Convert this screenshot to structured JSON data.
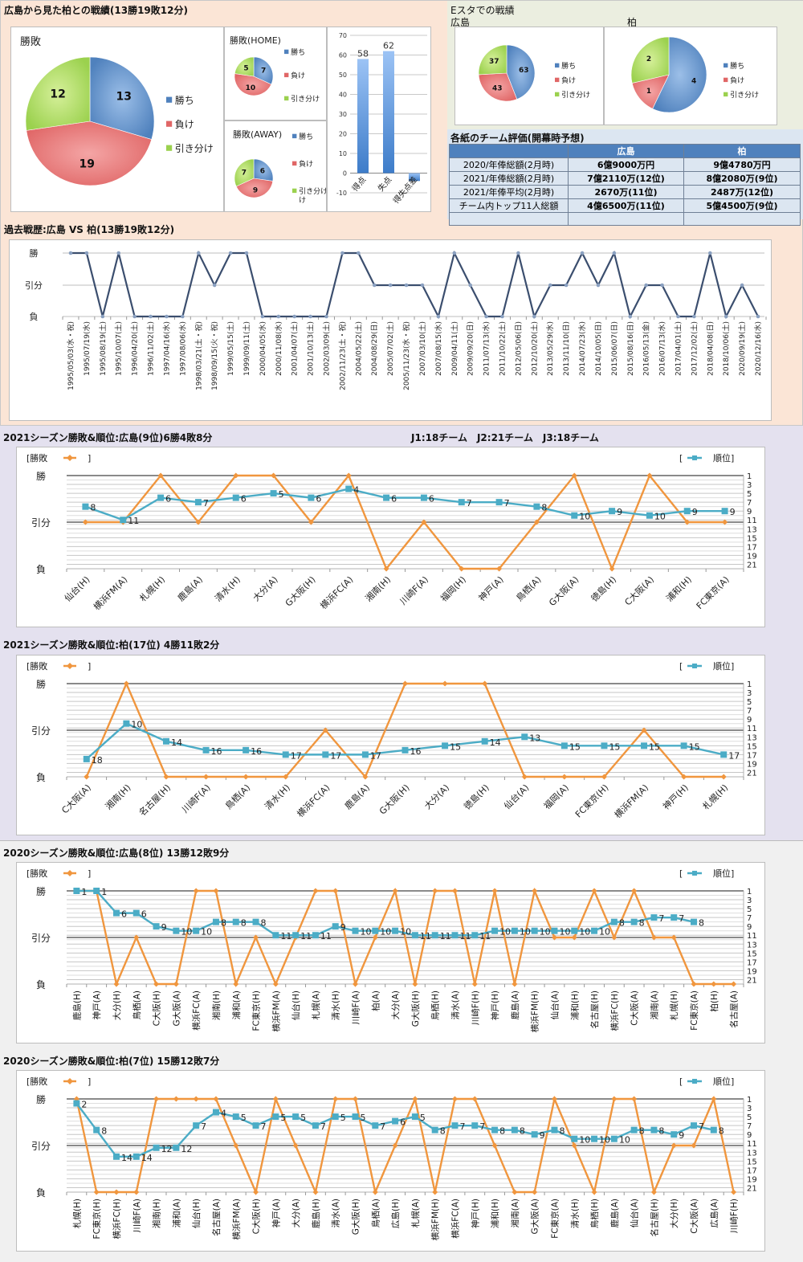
{
  "summary": {
    "title": "広島から見た柏との戦績(13勝19敗12分)",
    "legend": [
      "勝ち",
      "負け",
      "引き分け"
    ],
    "colors": {
      "win": "#4f81bd",
      "loss": "#e06666",
      "draw": "#9bd14e"
    },
    "pie_all": {
      "title": "勝敗",
      "values": [
        13,
        19,
        12
      ]
    },
    "pie_home": {
      "title": "勝敗(HOME)",
      "values": [
        7,
        10,
        5
      ]
    },
    "pie_away": {
      "title": "勝敗(AWAY)",
      "values": [
        6,
        9,
        7
      ]
    },
    "legend_away_draw_line2": "け"
  },
  "estadium": {
    "title": "Eスタでの戦績",
    "left_label": "広島",
    "right_label": "柏",
    "hiroshima": {
      "values": [
        63,
        43,
        37
      ]
    },
    "kashiwa": {
      "values": [
        4,
        1,
        2
      ]
    }
  },
  "evaluation": {
    "title": "各紙のチーム評価(開幕時予想)",
    "headers": [
      "広島",
      "柏"
    ],
    "rows": [
      {
        "label": "2020/年俸総額(2月時)",
        "hiroshima": "6億9000万円",
        "kashiwa": "9億4780万円"
      },
      {
        "label": "2021/年俸総額(2月時)",
        "hiroshima": "7億2110万(12位)",
        "kashiwa": "8億2080万(9位)"
      },
      {
        "label": "2021/年俸平均(2月時)",
        "hiroshima": "2670万(11位)",
        "kashiwa": "2487万(12位)"
      },
      {
        "label": "チーム内トップ11人総額",
        "hiroshima": "4億6500万(11位)",
        "kashiwa": "5億4500万(9位)"
      },
      {
        "label": "",
        "hiroshima": "",
        "kashiwa": ""
      }
    ]
  },
  "history": {
    "title": "過去戦歴:広島 VS 柏(13勝19敗12分)"
  },
  "season2021": {
    "title_hiroshima": "2021シーズン勝敗&順位:広島(9位)6勝4敗8分",
    "league_note": "J1:18チーム　J2:21チーム　J3:18チーム",
    "title_kashiwa": "2021シーズン勝敗&順位:柏(17位) 4勝11敗2分"
  },
  "season2020": {
    "title_hiroshima": "2020シーズン勝敗&順位:広島(8位) 13勝12敗9分",
    "title_kashiwa": "2020シーズン勝敗&順位:柏(7位) 15勝12敗7分"
  },
  "chart_data": [
    {
      "type": "pie",
      "title": "勝敗",
      "labels": [
        "勝ち",
        "負け",
        "引き分け"
      ],
      "values": [
        13,
        19,
        12
      ],
      "legend": "right"
    },
    {
      "type": "pie",
      "title": "勝敗(HOME)",
      "labels": [
        "勝ち",
        "負け",
        "引き分け"
      ],
      "values": [
        7,
        10,
        5
      ],
      "legend": "right"
    },
    {
      "type": "pie",
      "title": "勝敗(AWAY)",
      "labels": [
        "勝ち",
        "負け",
        "引き分け"
      ],
      "values": [
        6,
        9,
        7
      ],
      "legend": "right"
    },
    {
      "type": "bar",
      "title": "",
      "categories": [
        "得点",
        "失点",
        "得失点差"
      ],
      "values": [
        58,
        62,
        -4
      ],
      "data_labels": [
        "58",
        "62",
        "-4"
      ],
      "ylim": [
        -10,
        70
      ],
      "yticks": [
        -10,
        0,
        10,
        20,
        30,
        40,
        50,
        60,
        70
      ],
      "grid": true
    },
    {
      "type": "pie",
      "title": "広島 (Eスタ)",
      "labels": [
        "勝ち",
        "負け",
        "引き分け"
      ],
      "values": [
        63,
        43,
        37
      ],
      "legend": "right"
    },
    {
      "type": "pie",
      "title": "柏 (Eスタ)",
      "labels": [
        "勝ち",
        "負け",
        "引き分け"
      ],
      "values": [
        4,
        1,
        2
      ],
      "legend": "right"
    },
    {
      "type": "line",
      "title": "過去戦歴:広島 VS 柏(13勝19敗12分)",
      "y_levels": [
        "勝",
        "引分",
        "負"
      ],
      "x": [
        "1995/05/03(水・祝)",
        "1995/07/19(水)",
        "1995/08/19(土)",
        "1995/10/07(土)",
        "1996/04/20(土)",
        "1996/11/02(土)",
        "1997/04/16(水)",
        "1997/08/06(水)",
        "1998/03/21(土・祝)",
        "1998/09/15(火・祝)",
        "1999/05/15(土)",
        "1999/09/11(土)",
        "2000/04/05(水)",
        "2000/11/08(水)",
        "2001/04/07(土)",
        "2001/10/13(土)",
        "2002/03/09(土)",
        "2002/11/23(土・祝)",
        "2004/05/22(土)",
        "2004/08/29(日)",
        "2005/07/02(土)",
        "2005/11/23(水・祝)",
        "2007/03/10(土)",
        "2007/08/15(水)",
        "2009/04/11(土)",
        "2009/09/20(日)",
        "2011/07/13(水)",
        "2011/10/22(土)",
        "2012/05/06(日)",
        "2012/10/20(土)",
        "2013/05/29(水)",
        "2013/11/10(日)",
        "2014/07/23(水)",
        "2014/10/05(日)",
        "2015/06/07(日)",
        "2015/08/16(日)",
        "2016/05/13(金)",
        "2016/07/13(水)",
        "2017/04/01(土)",
        "2017/12/02(土)",
        "2018/04/08(日)",
        "2018/10/06(土)",
        "2020/09/19(土)",
        "2020/12/16(水)"
      ],
      "results": [
        "W",
        "W",
        "L",
        "W",
        "L",
        "L",
        "L",
        "L",
        "W",
        "D",
        "W",
        "W",
        "L",
        "L",
        "L",
        "L",
        "L",
        "W",
        "W",
        "D",
        "D",
        "D",
        "D",
        "L",
        "W",
        "D",
        "L",
        "L",
        "W",
        "L",
        "D",
        "D",
        "W",
        "D",
        "W",
        "L",
        "D",
        "D",
        "L",
        "L",
        "W",
        "L",
        "D",
        "L"
      ],
      "grid": true
    },
    {
      "type": "line",
      "title": "2021シーズン勝敗&順位:広島(9位)6勝4敗8分",
      "legend_left": "勝敗",
      "legend_right": "順位",
      "y_left_levels": [
        "勝",
        "引分",
        "負"
      ],
      "y_right_ticks": [
        1,
        3,
        5,
        7,
        9,
        11,
        13,
        15,
        17,
        19,
        21
      ],
      "categories": [
        "仙台(H)",
        "横浜FM(A)",
        "札幌(H)",
        "鹿島(A)",
        "清水(H)",
        "大分(A)",
        "G大阪(H)",
        "横浜FC(A)",
        "湘南(H)",
        "川崎F(A)",
        "福岡(H)",
        "神戸(A)",
        "鳥栖(A)",
        "G大阪(A)",
        "徳島(H)",
        "C大阪(A)",
        "浦和(H)",
        "FC東京(A)"
      ],
      "series": [
        {
          "name": "勝敗",
          "values": [
            "D",
            "D",
            "W",
            "D",
            "W",
            "W",
            "D",
            "W",
            "L",
            "D",
            "L",
            "L",
            "D",
            "W",
            "L",
            "W",
            "D",
            "D"
          ]
        },
        {
          "name": "順位",
          "values": [
            8,
            11,
            6,
            7,
            6,
            5,
            6,
            4,
            6,
            6,
            7,
            7,
            8,
            10,
            9,
            10,
            9,
            9
          ]
        }
      ],
      "rank_ylim": [
        1,
        22
      ]
    },
    {
      "type": "line",
      "title": "2021シーズン勝敗&順位:柏(17位) 4勝11敗2分",
      "legend_left": "勝敗",
      "legend_right": "順位",
      "y_left_levels": [
        "勝",
        "引分",
        "負"
      ],
      "y_right_ticks": [
        1,
        3,
        5,
        7,
        9,
        11,
        13,
        15,
        17,
        19,
        21
      ],
      "categories": [
        "C大阪(A)",
        "湘南(H)",
        "名古屋(H)",
        "川崎F(A)",
        "鳥栖(A)",
        "清水(H)",
        "横浜FC(A)",
        "鹿島(A)",
        "G大阪(H)",
        "大分(A)",
        "徳島(H)",
        "仙台(A)",
        "福岡(A)",
        "FC東京(H)",
        "横浜FM(A)",
        "神戸(H)",
        "札幌(H)"
      ],
      "series": [
        {
          "name": "勝敗",
          "values": [
            "L",
            "W",
            "L",
            "L",
            "L",
            "L",
            "D",
            "L",
            "W",
            "W",
            "W",
            "L",
            "L",
            "L",
            "D",
            "L",
            "L"
          ]
        },
        {
          "name": "順位",
          "values": [
            18,
            10,
            14,
            16,
            16,
            17,
            17,
            17,
            16,
            15,
            14,
            13,
            15,
            15,
            15,
            15,
            17
          ]
        }
      ],
      "rank_ylim": [
        1,
        22
      ]
    },
    {
      "type": "line",
      "title": "2020シーズン勝敗&順位:広島(8位) 13勝12敗9分",
      "legend_left": "勝敗",
      "legend_right": "順位",
      "y_left_levels": [
        "勝",
        "引分",
        "負"
      ],
      "y_right_ticks": [
        1,
        3,
        5,
        7,
        9,
        11,
        13,
        15,
        17,
        19,
        21
      ],
      "categories": [
        "鹿島(H)",
        "神戸(A)",
        "大分(H)",
        "鳥栖(A)",
        "C大阪(H)",
        "G大阪(A)",
        "横浜FC(A)",
        "湘南(H)",
        "浦和(A)",
        "FC東京(H)",
        "横浜FM(A)",
        "仙台(H)",
        "札幌(A)",
        "清水(H)",
        "川崎F(A)",
        "柏(A)",
        "大分(A)",
        "G大阪(H)",
        "鳥栖(H)",
        "清水(A)",
        "川崎F(H)",
        "神戸(H)",
        "鹿島(A)",
        "横浜FM(H)",
        "仙台(A)",
        "浦和(H)",
        "名古屋(H)",
        "横浜FC(H)",
        "C大阪(A)",
        "湘南(A)",
        "札幌(H)",
        "FC東京(A)",
        "柏(H)",
        "名古屋(A)"
      ],
      "series": [
        {
          "name": "勝敗",
          "values": [
            "W",
            "W",
            "L",
            "D",
            "L",
            "L",
            "W",
            "W",
            "L",
            "D",
            "L",
            "D",
            "W",
            "W",
            "L",
            "D",
            "W",
            "L",
            "W",
            "W",
            "L",
            "W",
            "L",
            "W",
            "D",
            "D",
            "W",
            "D",
            "W",
            "D",
            "D",
            "L",
            "L",
            "L"
          ]
        },
        {
          "name": "順位",
          "values": [
            1,
            1,
            6,
            6,
            9,
            10,
            10,
            8,
            8,
            8,
            11,
            11,
            11,
            9,
            10,
            10,
            10,
            11,
            11,
            11,
            11,
            10,
            10,
            10,
            10,
            10,
            10,
            8,
            8,
            7,
            7,
            8,
            null,
            null
          ]
        }
      ],
      "rank_ylim": [
        1,
        22
      ]
    },
    {
      "type": "line",
      "title": "2020シーズン勝敗&順位:柏(7位) 15勝12敗7分",
      "legend_left": "勝敗",
      "legend_right": "順位",
      "y_left_levels": [
        "勝",
        "引分",
        "負"
      ],
      "y_right_ticks": [
        1,
        3,
        5,
        7,
        9,
        11,
        13,
        15,
        17,
        19,
        21
      ],
      "categories": [
        "札幌(H)",
        "FC東京(H)",
        "横浜FC(H)",
        "川崎F(A)",
        "湘南(H)",
        "浦和(A)",
        "仙台(H)",
        "名古屋(A)",
        "横浜FM(A)",
        "C大阪(H)",
        "神戸(A)",
        "大分(A)",
        "鹿島(H)",
        "清水(A)",
        "G大阪(H)",
        "鳥栖(A)",
        "広島(H)",
        "札幌(A)",
        "横浜FM(H)",
        "横浜FC(A)",
        "神戸(H)",
        "浦和(H)",
        "湘南(A)",
        "G大阪(A)",
        "FC東京(A)",
        "清水(H)",
        "鳥栖(H)",
        "鹿島(A)",
        "仙台(A)",
        "名古屋(H)",
        "大分(H)",
        "C大阪(A)",
        "広島(A)",
        "川崎F(H)"
      ],
      "series": [
        {
          "name": "勝敗",
          "values": [
            "W",
            "L",
            "L",
            "L",
            "W",
            "W",
            "W",
            "W",
            "D",
            "L",
            "W",
            "D",
            "L",
            "W",
            "W",
            "L",
            "D",
            "W",
            "L",
            "W",
            "W",
            "D",
            "L",
            "L",
            "W",
            "D",
            "L",
            "W",
            "W",
            "L",
            "D",
            "D",
            "W",
            "L"
          ]
        },
        {
          "name": "順位",
          "values": [
            2,
            8,
            14,
            14,
            12,
            12,
            7,
            4,
            5,
            7,
            5,
            5,
            7,
            5,
            5,
            7,
            6,
            5,
            8,
            7,
            7,
            8,
            8,
            9,
            8,
            10,
            10,
            10,
            8,
            8,
            9,
            7,
            8,
            null
          ]
        }
      ],
      "rank_ylim": [
        1,
        22
      ]
    }
  ]
}
